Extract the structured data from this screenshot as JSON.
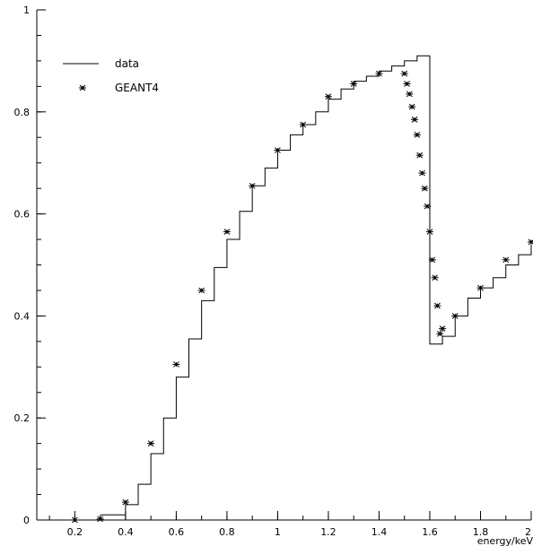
{
  "chart_data": {
    "type": "line",
    "title": "",
    "xlabel": "energy/keV",
    "ylabel": "",
    "xlim": [
      0.05,
      2.0
    ],
    "ylim": [
      0,
      1
    ],
    "xticks": [
      0.2,
      0.4,
      0.6,
      0.8,
      1.0,
      1.2,
      1.4,
      1.6,
      1.8,
      2.0
    ],
    "xtick_labels": [
      "0.2",
      "0.4",
      "0.6",
      "0.8",
      "1",
      "1.2",
      "1.4",
      "1.6",
      "1.8",
      "2"
    ],
    "yticks": [
      0,
      0.2,
      0.4,
      0.6,
      0.8,
      1.0
    ],
    "ytick_labels": [
      "0",
      "0.2",
      "0.4",
      "0.6",
      "0.8",
      "1"
    ],
    "grid": false,
    "legend_position": "top-left",
    "series": [
      {
        "name": "data",
        "style": "step",
        "color": "#000000",
        "x": [
          0.35,
          0.4,
          0.45,
          0.5,
          0.55,
          0.6,
          0.65,
          0.7,
          0.75,
          0.8,
          0.85,
          0.9,
          0.95,
          1.0,
          1.05,
          1.1,
          1.15,
          1.2,
          1.25,
          1.3,
          1.35,
          1.4,
          1.45,
          1.5,
          1.55,
          1.6,
          1.65,
          1.7,
          1.75,
          1.8,
          1.85,
          1.9,
          1.95,
          2.0
        ],
        "y": [
          0.01,
          0.03,
          0.07,
          0.13,
          0.2,
          0.28,
          0.355,
          0.43,
          0.495,
          0.55,
          0.605,
          0.655,
          0.69,
          0.725,
          0.755,
          0.775,
          0.8,
          0.825,
          0.845,
          0.86,
          0.87,
          0.88,
          0.89,
          0.9,
          0.91,
          0.345,
          0.36,
          0.4,
          0.435,
          0.455,
          0.475,
          0.5,
          0.52,
          0.54
        ]
      },
      {
        "name": "GEANT4",
        "style": "markers",
        "marker": "asterisk",
        "color": "#000000",
        "x": [
          0.2,
          0.3,
          0.4,
          0.5,
          0.6,
          0.7,
          0.8,
          0.9,
          1.0,
          1.1,
          1.2,
          1.3,
          1.4,
          1.5,
          1.51,
          1.52,
          1.53,
          1.54,
          1.55,
          1.56,
          1.57,
          1.58,
          1.59,
          1.6,
          1.61,
          1.62,
          1.63,
          1.64,
          1.65,
          1.7,
          1.8,
          1.9,
          2.0
        ],
        "y": [
          0.0,
          0.002,
          0.035,
          0.15,
          0.305,
          0.45,
          0.565,
          0.655,
          0.725,
          0.775,
          0.83,
          0.855,
          0.875,
          0.875,
          0.855,
          0.835,
          0.81,
          0.785,
          0.755,
          0.715,
          0.68,
          0.65,
          0.615,
          0.565,
          0.51,
          0.475,
          0.42,
          0.365,
          0.375,
          0.4,
          0.455,
          0.51,
          0.545
        ]
      }
    ]
  }
}
